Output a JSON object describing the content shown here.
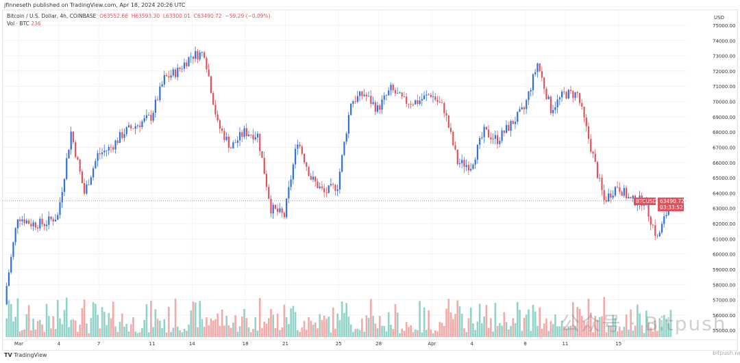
{
  "publisher": "jfinneseth published on TradingView.com, Apr 18, 2024 20:26 UTC",
  "legend": {
    "symbol": "Bitcoin / U.S. Dollar, 4h, COINBASE",
    "open": "O63552.66",
    "high": "H63593.30",
    "low": "L63300.01",
    "close": "C63490.72",
    "change": "−59.29 (−0.09%)",
    "vol_label": "Vol · BTC",
    "vol_value": "236"
  },
  "price_tag": {
    "symbol": "BTCUSD",
    "price": "63490.72",
    "countdown": "03:33:52"
  },
  "footer": {
    "logo": "TradingView"
  },
  "watermark": {
    "text": "公众号 · Bitpush",
    "site": "bitpush.news"
  },
  "colors": {
    "up": "#2f6fe0",
    "down": "#e0525a",
    "vol_up": "#8fd3c9",
    "vol_down": "#f2aaa8"
  },
  "chart_data": {
    "type": "candlestick",
    "title": "Bitcoin / U.S. Dollar, 4h, COINBASE",
    "y_unit": "USD",
    "ylim": [
      55000,
      75000
    ],
    "yticks": [
      75000,
      74000,
      73000,
      72000,
      71000,
      70000,
      69000,
      68000,
      67000,
      66000,
      65000,
      64000,
      63000,
      62000,
      61000,
      60000,
      59000,
      58000,
      57000,
      56000,
      55000
    ],
    "xticks": [
      [
        "Mar",
        0
      ],
      [
        "4",
        3
      ],
      [
        "7",
        6
      ],
      [
        "11",
        10
      ],
      [
        "14",
        13
      ],
      [
        "18",
        17
      ],
      [
        "21",
        20
      ],
      [
        "25",
        24
      ],
      [
        "28",
        27
      ],
      [
        "Apr",
        31
      ],
      [
        "4",
        34
      ],
      [
        "8",
        38
      ],
      [
        "11",
        41
      ],
      [
        "15",
        45
      ]
    ],
    "approx_daily_closes_from_Feb28": [
      57000,
      62500,
      62000,
      62000,
      62500,
      68000,
      64000,
      66500,
      67000,
      68000,
      68500,
      69000,
      71500,
      72000,
      73000,
      73200,
      68500,
      67000,
      68000,
      67800,
      63000,
      62500,
      67500,
      65000,
      64000,
      64500,
      70000,
      70500,
      69500,
      70800,
      70000,
      70000,
      70500,
      69500,
      66000,
      65800,
      68000,
      67500,
      68500,
      69500,
      72500,
      69500,
      70500,
      70500,
      67000,
      63500,
      64500,
      63500,
      63500,
      61000,
      63490.72
    ],
    "last_volume": 236,
    "grid": true
  }
}
